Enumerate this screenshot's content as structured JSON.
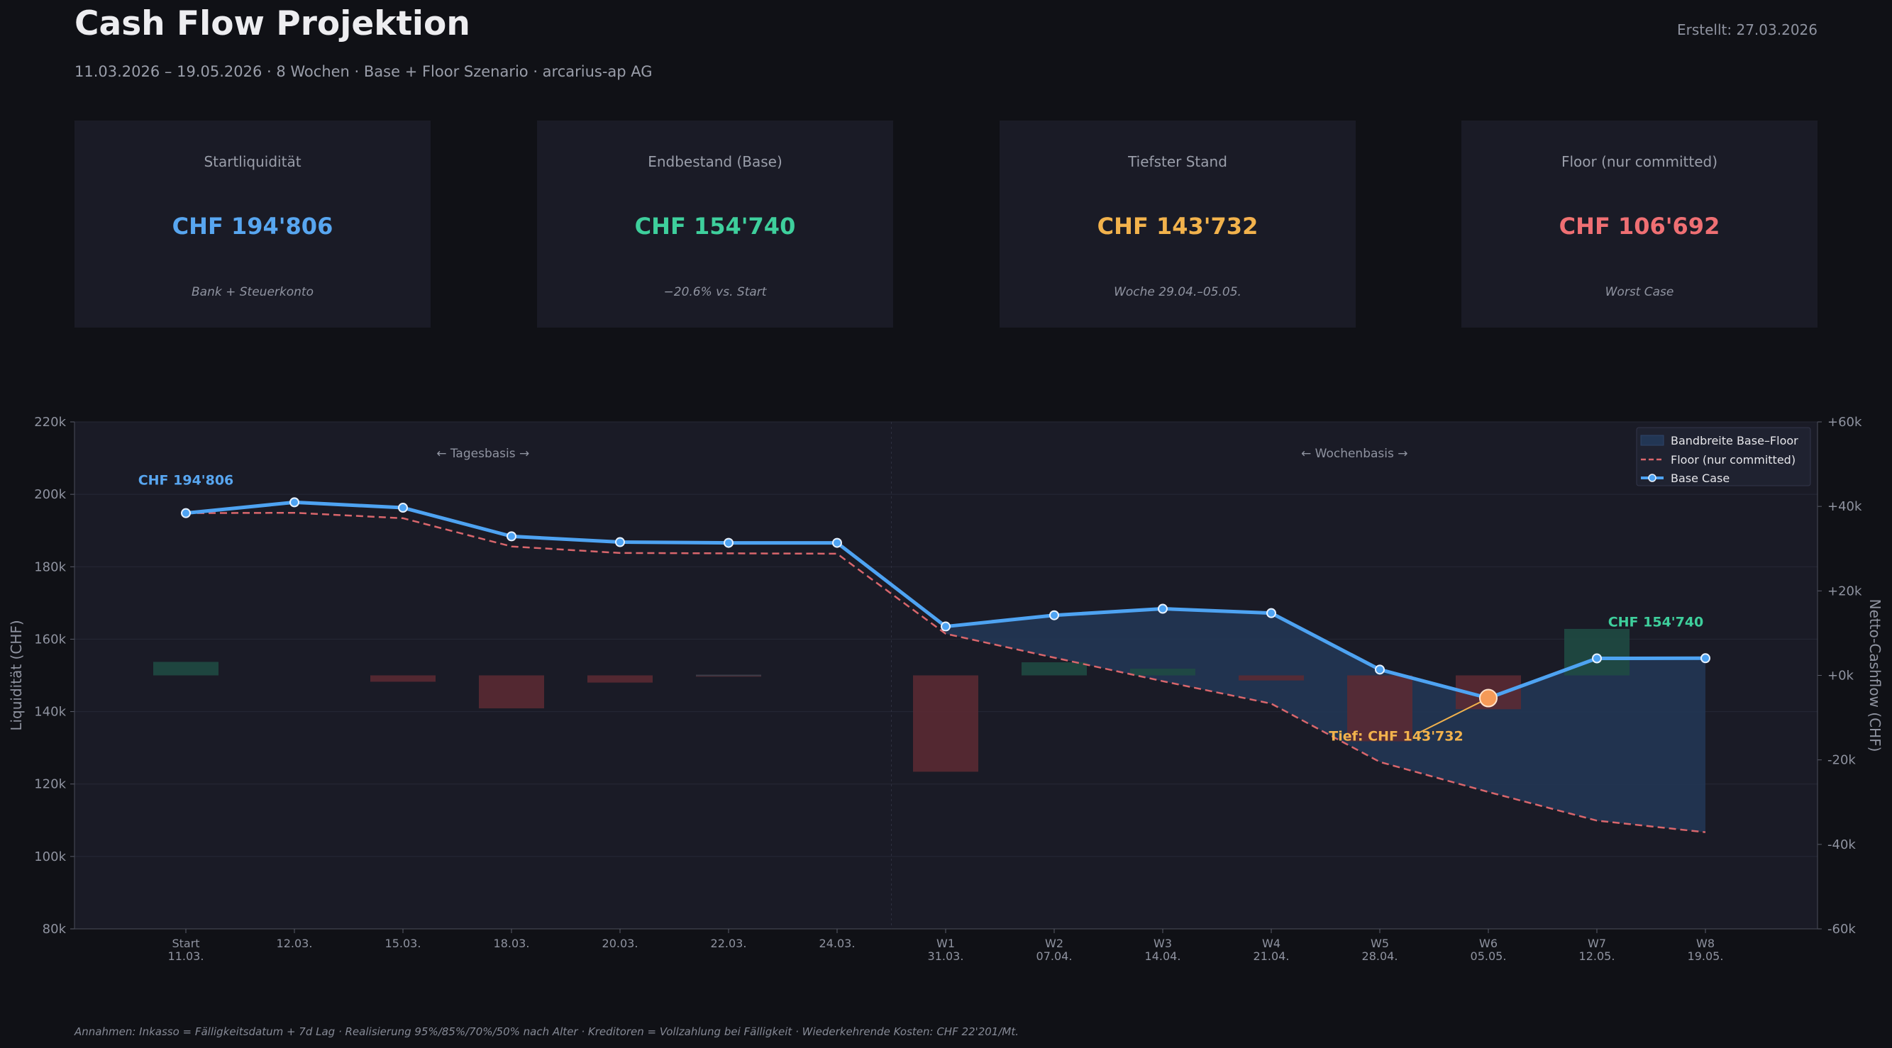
{
  "header": {
    "title": "Cash Flow Projektion",
    "created": "Erstellt: 27.03.2026",
    "subtitle": "11.03.2026 – 19.05.2026  ·  8 Wochen  ·  Base + Floor Szenario  ·  arcarius-ap AG"
  },
  "kpis": [
    {
      "label": "Startliquidität",
      "value": "CHF 194'806",
      "note": "Bank + Steuerkonto",
      "color": "#58a6f0"
    },
    {
      "label": "Endbestand (Base)",
      "value": "CHF 154'740",
      "note": "−20.6% vs. Start",
      "color": "#3ecf9c"
    },
    {
      "label": "Tiefster Stand",
      "value": "CHF 143'732",
      "note": "Woche 29.04.–05.05.",
      "color": "#f2b24c"
    },
    {
      "label": "Floor (nur committed)",
      "value": "CHF 106'692",
      "note": "Worst Case",
      "color": "#ef6f73"
    }
  ],
  "chart_data": {
    "type": "line",
    "ylabel": "Liquidität (CHF)",
    "y2label": "Netto-Cashflow (CHF)",
    "ylim": [
      80000,
      220000
    ],
    "y2lim": [
      -60000,
      60000
    ],
    "yticks": [
      "80k",
      "100k",
      "120k",
      "140k",
      "160k",
      "180k",
      "200k",
      "220k"
    ],
    "y2ticks": [
      "-60k",
      "-40k",
      "-20k",
      "+0k",
      "+20k",
      "+40k",
      "+60k"
    ],
    "x_labels": [
      [
        "Start",
        "11.03."
      ],
      [
        "12.03."
      ],
      [
        "15.03."
      ],
      [
        "18.03."
      ],
      [
        "20.03."
      ],
      [
        "22.03."
      ],
      [
        "24.03."
      ],
      [
        "W1",
        "31.03."
      ],
      [
        "W2",
        "07.04."
      ],
      [
        "W3",
        "14.04."
      ],
      [
        "W4",
        "21.04."
      ],
      [
        "W5",
        "28.04."
      ],
      [
        "W6",
        "05.05."
      ],
      [
        "W7",
        "12.05."
      ],
      [
        "W8",
        "19.05."
      ]
    ],
    "series": [
      {
        "name": "Base Case",
        "color": "#4ea3f2",
        "values": [
          194806,
          197800,
          196300,
          188400,
          186800,
          186600,
          186600,
          163500,
          166600,
          168400,
          167200,
          151600,
          143732,
          154700,
          154740
        ]
      },
      {
        "name": "Floor (nur committed)",
        "color": "#d9666c",
        "values": [
          194806,
          194900,
          193400,
          185600,
          183800,
          183700,
          183600,
          161500,
          154900,
          148400,
          142200,
          126100,
          117800,
          109900,
          106692
        ]
      }
    ],
    "band": {
      "name": "Bandbreite Base–Floor",
      "from_index": 7,
      "color": "#223654"
    },
    "net_cashflow": {
      "values": [
        3200,
        0,
        -1500,
        -7800,
        -1700,
        -300,
        0,
        -22800,
        3100,
        1600,
        -1200,
        -15600,
        -8000,
        11000,
        0
      ],
      "pos_color": "#1f4a43",
      "neg_color": "#5a2a33"
    },
    "annotations": {
      "start": "CHF 194'806",
      "end": "CHF 154'740",
      "low": "Tief: CHF 143'732",
      "region_daily": "← Tagesbasis →",
      "region_weekly": "← Wochenbasis →"
    },
    "colors": {
      "start": "#58a6f0",
      "end": "#3ecf9c",
      "low": "#f2b24c",
      "plot_bg": "#1a1b26"
    },
    "legend_position": "top-right",
    "grid": true
  },
  "footnote": "Annahmen: Inkasso = Fälligkeitsdatum + 7d Lag  ·  Realisierung 95%/85%/70%/50% nach Alter  ·  Kreditoren = Vollzahlung bei Fälligkeit  ·  Wiederkehrende Kosten: CHF 22'201/Mt."
}
